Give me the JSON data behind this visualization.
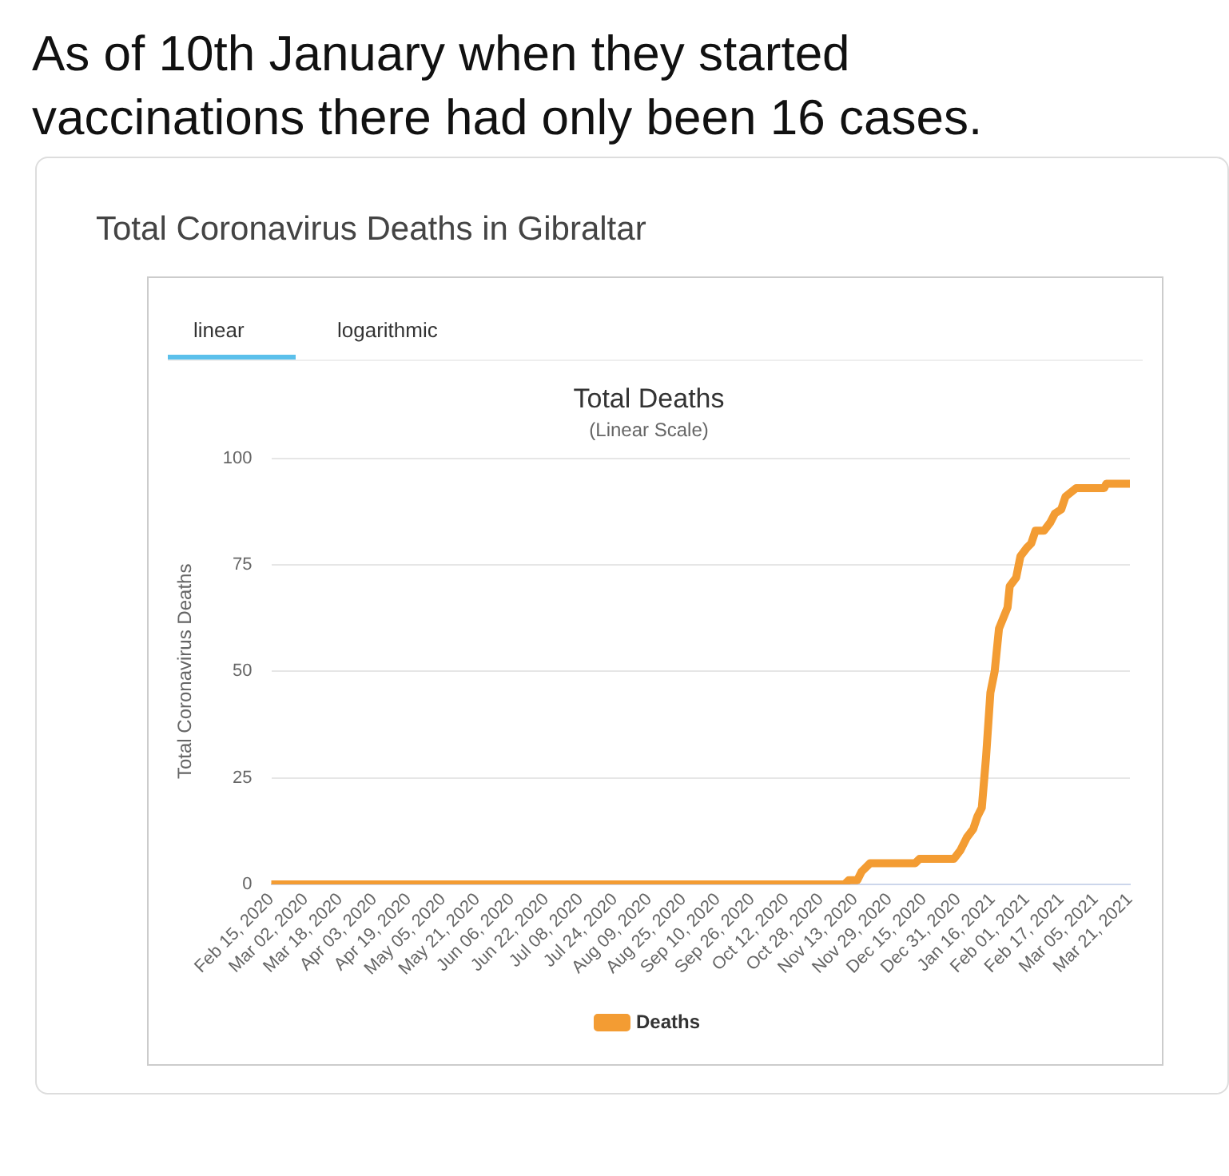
{
  "chart_data": {
    "type": "line",
    "title": "Total Deaths",
    "subtitle": "(Linear Scale)",
    "ylabel": "Total Coronavirus Deaths",
    "annotations": [
      "As of 10th January when they started vaccinations there had only been 16 cases.",
      "Total Coronavirus Deaths in Gibraltar",
      "linear",
      "logarithmic"
    ],
    "series": [
      {
        "name": "Deaths",
        "color": "#f39c33",
        "x": [
          "2020-02-15",
          "2020-11-08",
          "2020-11-10",
          "2020-11-14",
          "2020-11-16",
          "2020-11-20",
          "2020-12-11",
          "2020-12-13",
          "2020-12-29",
          "2021-01-01",
          "2021-01-04",
          "2021-01-07",
          "2021-01-09",
          "2021-01-11",
          "2021-01-13",
          "2021-01-15",
          "2021-01-17",
          "2021-01-19",
          "2021-01-23",
          "2021-01-24",
          "2021-01-27",
          "2021-01-29",
          "2021-02-01",
          "2021-02-03",
          "2021-02-05",
          "2021-02-09",
          "2021-02-12",
          "2021-02-14",
          "2021-02-17",
          "2021-02-19",
          "2021-02-24",
          "2021-03-09",
          "2021-03-10",
          "2021-03-21"
        ],
        "values": [
          0,
          0,
          1,
          1,
          3,
          5,
          5,
          6,
          6,
          8,
          11,
          13,
          16,
          18,
          30,
          45,
          50,
          60,
          65,
          70,
          72,
          77,
          79,
          80,
          83,
          83,
          85,
          87,
          88,
          91,
          93,
          93,
          94,
          94
        ]
      }
    ],
    "xlim": [
      "2020-02-15",
      "2021-03-21"
    ],
    "xticks": [
      {
        "value": "2020-02-15",
        "label": "Feb 15, 2020"
      },
      {
        "value": "2020-03-02",
        "label": "Mar 02, 2020"
      },
      {
        "value": "2020-03-18",
        "label": "Mar 18, 2020"
      },
      {
        "value": "2020-04-03",
        "label": "Apr 03, 2020"
      },
      {
        "value": "2020-04-19",
        "label": "Apr 19, 2020"
      },
      {
        "value": "2020-05-05",
        "label": "May 05, 2020"
      },
      {
        "value": "2020-05-21",
        "label": "May 21, 2020"
      },
      {
        "value": "2020-06-06",
        "label": "Jun 06, 2020"
      },
      {
        "value": "2020-06-22",
        "label": "Jun 22, 2020"
      },
      {
        "value": "2020-07-08",
        "label": "Jul 08, 2020"
      },
      {
        "value": "2020-07-24",
        "label": "Jul 24, 2020"
      },
      {
        "value": "2020-08-09",
        "label": "Aug 09, 2020"
      },
      {
        "value": "2020-08-25",
        "label": "Aug 25, 2020"
      },
      {
        "value": "2020-09-10",
        "label": "Sep 10, 2020"
      },
      {
        "value": "2020-09-26",
        "label": "Sep 26, 2020"
      },
      {
        "value": "2020-10-12",
        "label": "Oct 12, 2020"
      },
      {
        "value": "2020-10-28",
        "label": "Oct 28, 2020"
      },
      {
        "value": "2020-11-13",
        "label": "Nov 13, 2020"
      },
      {
        "value": "2020-11-29",
        "label": "Nov 29, 2020"
      },
      {
        "value": "2020-12-15",
        "label": "Dec 15, 2020"
      },
      {
        "value": "2020-12-31",
        "label": "Dec 31, 2020"
      },
      {
        "value": "2021-01-16",
        "label": "Jan 16, 2021"
      },
      {
        "value": "2021-02-01",
        "label": "Feb 01, 2021"
      },
      {
        "value": "2021-02-17",
        "label": "Feb 17, 2021"
      },
      {
        "value": "2021-03-05",
        "label": "Mar 05, 2021"
      },
      {
        "value": "2021-03-21",
        "label": "Mar 21, 2021"
      }
    ],
    "ylim": [
      0,
      100
    ],
    "yticks": [
      0,
      25,
      50,
      75,
      100
    ],
    "grid": "y",
    "legend": "bottom",
    "marker": "none",
    "line_style": "solid"
  }
}
